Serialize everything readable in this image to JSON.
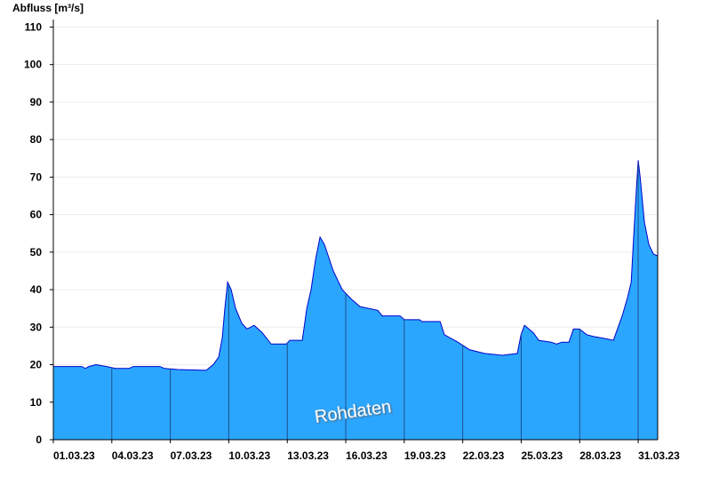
{
  "chart_data": {
    "type": "area",
    "y_label": "Abfluss [m³/s]",
    "annotation": "Rohdaten",
    "color": "#2ba6ff",
    "line_color": "#0000cc",
    "xlim": [
      1,
      32
    ],
    "ylim": [
      0,
      112
    ],
    "xticks": [
      {
        "value": 1,
        "label": "01.03.23"
      },
      {
        "value": 4,
        "label": "04.03.23"
      },
      {
        "value": 7,
        "label": "07.03.23"
      },
      {
        "value": 10,
        "label": "10.03.23"
      },
      {
        "value": 13,
        "label": "13.03.23"
      },
      {
        "value": 16,
        "label": "16.03.23"
      },
      {
        "value": 19,
        "label": "19.03.23"
      },
      {
        "value": 22,
        "label": "22.03.23"
      },
      {
        "value": 25,
        "label": "25.03.23"
      },
      {
        "value": 28,
        "label": "28.03.23"
      },
      {
        "value": 31,
        "label": "31.03.23"
      }
    ],
    "yticks": [
      0,
      10,
      20,
      30,
      40,
      50,
      60,
      70,
      80,
      90,
      100,
      110
    ],
    "grid": true,
    "x": [
      1,
      2.46,
      2.64,
      2.82,
      3.19,
      3.74,
      4.19,
      4.88,
      5.1,
      6.47,
      6.7,
      7.38,
      8.84,
      9.2,
      9.48,
      9.66,
      9.8,
      9.94,
      10.12,
      10.35,
      10.67,
      10.94,
      11.3,
      11.72,
      12.17,
      12.95,
      13.13,
      13.77,
      14.0,
      14.22,
      14.45,
      14.68,
      14.91,
      15.36,
      15.82,
      16.28,
      16.73,
      17.64,
      17.87,
      18.78,
      19.01,
      19.78,
      19.92,
      20.84,
      21.06,
      21.75,
      22.34,
      23.12,
      24.03,
      24.8,
      24.99,
      25.17,
      25.62,
      25.9,
      26.54,
      26.81,
      27.08,
      27.45,
      27.68,
      27.99,
      28.36,
      28.72,
      29.27,
      29.73,
      30.18,
      30.46,
      30.64,
      30.78,
      30.91,
      31.0,
      31.1,
      31.32,
      31.55,
      31.78,
      32.0
    ],
    "values": [
      19.5,
      19.5,
      19,
      19.5,
      20,
      19.5,
      19,
      19,
      19.5,
      19.5,
      19,
      18.7,
      18.5,
      20,
      22,
      27,
      35,
      42,
      40,
      35,
      31,
      29.5,
      30.5,
      28.5,
      25.5,
      25.5,
      26.5,
      26.5,
      35,
      40,
      48,
      54,
      52,
      45,
      40,
      37.5,
      35.5,
      34.5,
      33,
      33,
      32,
      32,
      31.5,
      31.5,
      28,
      26,
      24,
      23,
      22.5,
      23,
      28,
      30.5,
      28.5,
      26.5,
      26,
      25.5,
      26,
      26,
      29.5,
      29.5,
      28,
      27.5,
      27,
      26.5,
      33,
      38,
      42,
      55,
      67,
      74.5,
      70,
      58,
      52,
      49.5,
      49
    ]
  }
}
